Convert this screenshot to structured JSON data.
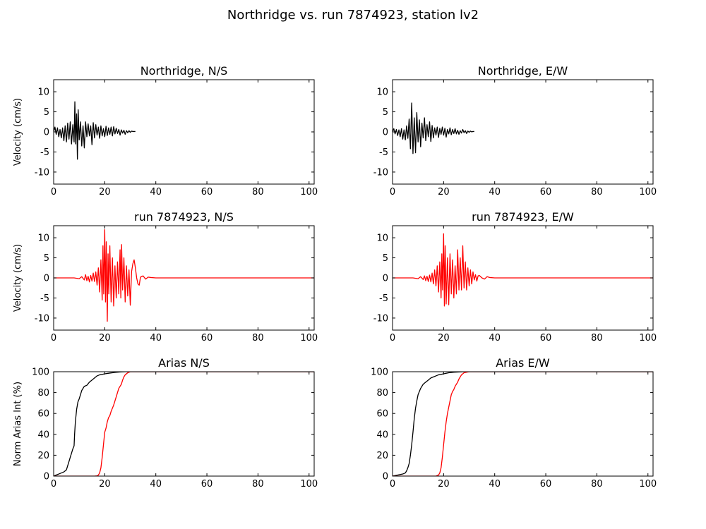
{
  "figure": {
    "title": "Northridge vs. run 7874923, station lv2"
  },
  "chart_data": [
    {
      "type": "line",
      "title": "Northridge, N/S",
      "xlabel": "",
      "ylabel": "Velocity (cm/s)",
      "xlim": [
        0,
        102
      ],
      "ylim": [
        -13,
        13
      ],
      "xticks": [
        0,
        20,
        40,
        60,
        80,
        100
      ],
      "yticks": [
        -10,
        -5,
        0,
        5,
        10
      ],
      "grid": false,
      "series": [
        {
          "color": "#000000",
          "x": [
            0,
            0.5,
            1,
            1.5,
            2,
            2.5,
            3,
            3.5,
            4,
            4.5,
            5,
            5.5,
            6,
            6.5,
            7,
            7.5,
            8,
            8.3,
            8.6,
            9,
            9.3,
            9.6,
            10,
            10.5,
            11,
            11.5,
            12,
            12.5,
            13,
            13.5,
            14,
            14.5,
            15,
            15.5,
            16,
            16.5,
            17,
            17.5,
            18,
            18.5,
            19,
            19.5,
            20,
            20.5,
            21,
            21.5,
            22,
            22.5,
            23,
            23.5,
            24,
            24.5,
            25,
            25.5,
            26,
            26.5,
            27,
            27.5,
            28,
            28.5,
            29,
            29.5,
            30,
            30.5,
            31,
            31.5,
            32
          ],
          "y": [
            0,
            1.2,
            -0.6,
            1,
            -1.2,
            0.6,
            -1.5,
            1,
            -2.2,
            1.5,
            -2.5,
            2.2,
            -1.8,
            2.5,
            -3,
            1.8,
            -2.5,
            7.5,
            -3,
            4.5,
            -6.8,
            5.5,
            -2,
            2.5,
            -3.5,
            1.5,
            -4,
            2.5,
            -1.2,
            2,
            -1,
            1.5,
            -3.2,
            2.3,
            -1.5,
            1.8,
            -0.8,
            1.2,
            -1.6,
            1.5,
            -1,
            0.8,
            -1.2,
            1.4,
            -0.9,
            1,
            -0.6,
            1.2,
            -1,
            1.3,
            -0.5,
            0.9,
            -0.4,
            0.6,
            -0.8,
            0.5,
            -0.3,
            0.4,
            -0.6,
            0.3,
            -0.2,
            0.3,
            -0.1,
            0.2,
            0.1,
            0.1,
            0.1
          ]
        }
      ]
    },
    {
      "type": "line",
      "title": "Northridge, E/W",
      "xlabel": "",
      "ylabel": "",
      "xlim": [
        0,
        102
      ],
      "ylim": [
        -13,
        13
      ],
      "xticks": [
        0,
        20,
        40,
        60,
        80,
        100
      ],
      "yticks": [
        -10,
        -5,
        0,
        5,
        10
      ],
      "grid": false,
      "series": [
        {
          "color": "#000000",
          "x": [
            0,
            0.5,
            1,
            1.5,
            2,
            2.5,
            3,
            3.5,
            4,
            4.5,
            5,
            5.5,
            6,
            6.5,
            7,
            7.5,
            8,
            8.5,
            9,
            9.5,
            10,
            10.5,
            11,
            11.5,
            12,
            12.5,
            13,
            13.5,
            14,
            14.5,
            15,
            15.5,
            16,
            16.5,
            17,
            17.5,
            18,
            18.5,
            19,
            19.5,
            20,
            20.5,
            21,
            21.5,
            22,
            22.5,
            23,
            23.5,
            24,
            24.5,
            25,
            25.5,
            26,
            26.5,
            27,
            27.5,
            28,
            28.5,
            29,
            29.5,
            30,
            30.5,
            31,
            31.5,
            32
          ],
          "y": [
            0,
            0.8,
            -0.5,
            0.6,
            -0.9,
            0.5,
            -1.2,
            0.8,
            -1.8,
            0.5,
            -2,
            1.5,
            -1.6,
            3.2,
            -4.2,
            7.2,
            -5.4,
            3.5,
            -5.2,
            4.8,
            -2.5,
            3,
            -3.7,
            2.2,
            -1.5,
            3.5,
            -2.2,
            1.8,
            -1.2,
            2.5,
            -2.4,
            1.6,
            -1.5,
            1,
            -0.8,
            1.2,
            -1.4,
            0.9,
            -0.6,
            1.2,
            -0.8,
            0.9,
            -1.3,
            0.6,
            -0.5,
            1,
            -0.7,
            0.6,
            -0.4,
            0.8,
            -0.5,
            0.4,
            -0.6,
            0.3,
            -0.3,
            0.6,
            -0.2,
            0.3,
            -0.4,
            0.2,
            -0.1,
            0.2,
            0,
            0.1,
            0.1
          ]
        }
      ]
    },
    {
      "type": "line",
      "title": "run 7874923, N/S",
      "xlabel": "",
      "ylabel": "Velocity (cm/s)",
      "xlim": [
        0,
        102
      ],
      "ylim": [
        -13,
        13
      ],
      "xticks": [
        0,
        20,
        40,
        60,
        80,
        100
      ],
      "yticks": [
        -10,
        -5,
        0,
        5,
        10
      ],
      "grid": false,
      "series": [
        {
          "color": "#ff0000",
          "x": [
            0,
            8,
            10,
            11,
            12,
            12.5,
            13,
            13.5,
            14,
            14.5,
            15,
            15.5,
            16,
            16.5,
            17,
            17.5,
            18,
            18.5,
            19,
            19.3,
            19.6,
            20,
            20.3,
            20.6,
            21,
            21.3,
            21.6,
            22,
            22.5,
            23,
            23.5,
            24,
            24.5,
            25,
            25.5,
            26,
            26.3,
            26.6,
            27,
            27.5,
            28,
            28.5,
            29,
            29.5,
            30,
            30.5,
            31,
            31.5,
            32,
            32.5,
            33,
            33.5,
            34,
            35,
            36,
            37,
            38,
            40,
            45,
            102
          ],
          "y": [
            0,
            0,
            -0.2,
            0.3,
            -0.5,
            0.8,
            -0.7,
            0.4,
            -1,
            0.6,
            -0.8,
            1.2,
            -0.9,
            1.5,
            -1.8,
            2.5,
            -3.5,
            4.5,
            -5.5,
            8,
            -4,
            12,
            -6,
            9,
            -10.8,
            6,
            -4,
            8,
            -6,
            5,
            -7,
            3,
            -5,
            4,
            -4,
            7,
            -5,
            8.3,
            -3,
            5,
            -6,
            3,
            -4.5,
            2,
            -6.8,
            1.5,
            3.5,
            4.5,
            2.5,
            0,
            -1.5,
            -1.8,
            0.2,
            0.5,
            -0.3,
            0.2,
            0.1,
            0,
            0,
            0
          ]
        }
      ]
    },
    {
      "type": "line",
      "title": "run 7874923, E/W",
      "xlabel": "",
      "ylabel": "",
      "xlim": [
        0,
        102
      ],
      "ylim": [
        -13,
        13
      ],
      "xticks": [
        0,
        20,
        40,
        60,
        80,
        100
      ],
      "yticks": [
        -10,
        -5,
        0,
        5,
        10
      ],
      "grid": false,
      "series": [
        {
          "color": "#ff0000",
          "x": [
            0,
            8,
            10,
            11,
            12,
            12.5,
            13,
            13.5,
            14,
            14.5,
            15,
            15.5,
            16,
            16.5,
            17,
            17.5,
            18,
            18.5,
            19,
            19.3,
            19.6,
            20,
            20.3,
            20.6,
            21,
            21.5,
            22,
            22.5,
            23,
            23.5,
            24,
            24.5,
            25,
            25.5,
            26,
            26.5,
            27,
            27.5,
            28,
            28.5,
            29,
            29.5,
            30,
            30.5,
            31,
            31.5,
            32,
            32.5,
            33,
            33.5,
            34,
            35,
            36,
            37,
            38,
            40,
            45,
            102
          ],
          "y": [
            0,
            0,
            -0.2,
            0.3,
            -0.4,
            0.5,
            -0.7,
            0.4,
            -0.9,
            0.7,
            -1,
            1.2,
            -1.5,
            2,
            -2,
            3,
            -3.5,
            4,
            -5,
            6,
            -3,
            11,
            -7,
            8,
            -6.5,
            5,
            -6.7,
            6,
            -4,
            4.5,
            -5,
            3,
            -4,
            7,
            -3,
            5,
            -3,
            8,
            -2.5,
            4,
            -3,
            2.5,
            -2,
            2,
            -1.5,
            1.5,
            -0.5,
            0.8,
            -0.8,
            0.5,
            0.6,
            0,
            -0.3,
            0.3,
            0.1,
            0,
            0,
            0
          ]
        }
      ]
    },
    {
      "type": "line",
      "title": "Arias N/S",
      "xlabel": "",
      "ylabel": "Norm Arias Int (%)",
      "xlim": [
        0,
        102
      ],
      "ylim": [
        0,
        100
      ],
      "xticks": [
        0,
        20,
        40,
        60,
        80,
        100
      ],
      "yticks": [
        0,
        20,
        40,
        60,
        80,
        100
      ],
      "grid": false,
      "series": [
        {
          "color": "#000000",
          "x": [
            0,
            1,
            2,
            3,
            4,
            5,
            5.5,
            6,
            6.5,
            7,
            7.5,
            8,
            8.2,
            8.5,
            9,
            9.5,
            10,
            11,
            12,
            13,
            14,
            15,
            16,
            17,
            18,
            19,
            20,
            22,
            24,
            26,
            28,
            30,
            102
          ],
          "y": [
            0,
            1,
            2,
            3,
            4,
            6,
            10,
            14,
            18,
            22,
            26,
            29,
            40,
            52,
            64,
            71,
            74,
            82,
            86,
            87,
            90,
            92,
            94,
            96,
            97,
            97.5,
            98,
            98.7,
            99.3,
            99.8,
            100,
            100,
            100
          ]
        },
        {
          "color": "#ff0000",
          "x": [
            0,
            16,
            17,
            17.5,
            18,
            18.5,
            19,
            19.5,
            20,
            20.5,
            21,
            21.5,
            22,
            22.5,
            23,
            23.5,
            24,
            24.5,
            25,
            25.5,
            26,
            26.5,
            27,
            27.5,
            28,
            29,
            30,
            31,
            32,
            102
          ],
          "y": [
            0,
            0,
            0.2,
            1,
            3,
            8,
            18,
            30,
            42,
            46,
            52,
            56,
            58,
            62,
            65,
            68,
            72,
            76,
            80,
            84,
            86,
            88,
            92,
            95,
            97,
            99,
            100,
            100,
            100,
            100
          ]
        }
      ]
    },
    {
      "type": "line",
      "title": "Arias E/W",
      "xlabel": "",
      "ylabel": "",
      "xlim": [
        0,
        102
      ],
      "ylim": [
        0,
        100
      ],
      "xticks": [
        0,
        20,
        40,
        60,
        80,
        100
      ],
      "yticks": [
        0,
        20,
        40,
        60,
        80,
        100
      ],
      "grid": false,
      "series": [
        {
          "color": "#000000",
          "x": [
            0,
            1,
            2,
            3,
            4,
            5,
            5.5,
            6,
            6.5,
            7,
            7.5,
            8,
            8.5,
            9,
            9.5,
            10,
            11,
            12,
            13,
            14,
            15,
            16,
            17,
            18,
            19,
            20,
            22,
            24,
            26,
            28,
            30,
            102
          ],
          "y": [
            0,
            0.5,
            1,
            1.5,
            2,
            3,
            5,
            8,
            12,
            20,
            30,
            42,
            55,
            65,
            72,
            78,
            84,
            88,
            90,
            92,
            94,
            95,
            96,
            97,
            97.5,
            98,
            99,
            99.5,
            99.8,
            100,
            100,
            100
          ]
        },
        {
          "color": "#ff0000",
          "x": [
            0,
            17,
            18,
            18.5,
            19,
            19.5,
            20,
            20.5,
            21,
            21.5,
            22,
            22.5,
            23,
            23.5,
            24,
            24.5,
            25,
            25.5,
            26,
            26.5,
            27,
            27.5,
            28,
            29,
            30,
            31,
            102
          ],
          "y": [
            0,
            0,
            1,
            3,
            8,
            18,
            30,
            42,
            52,
            60,
            66,
            72,
            78,
            81,
            83,
            86,
            88,
            90,
            93,
            95,
            97,
            98,
            99,
            99.5,
            100,
            100,
            100
          ]
        }
      ]
    }
  ]
}
